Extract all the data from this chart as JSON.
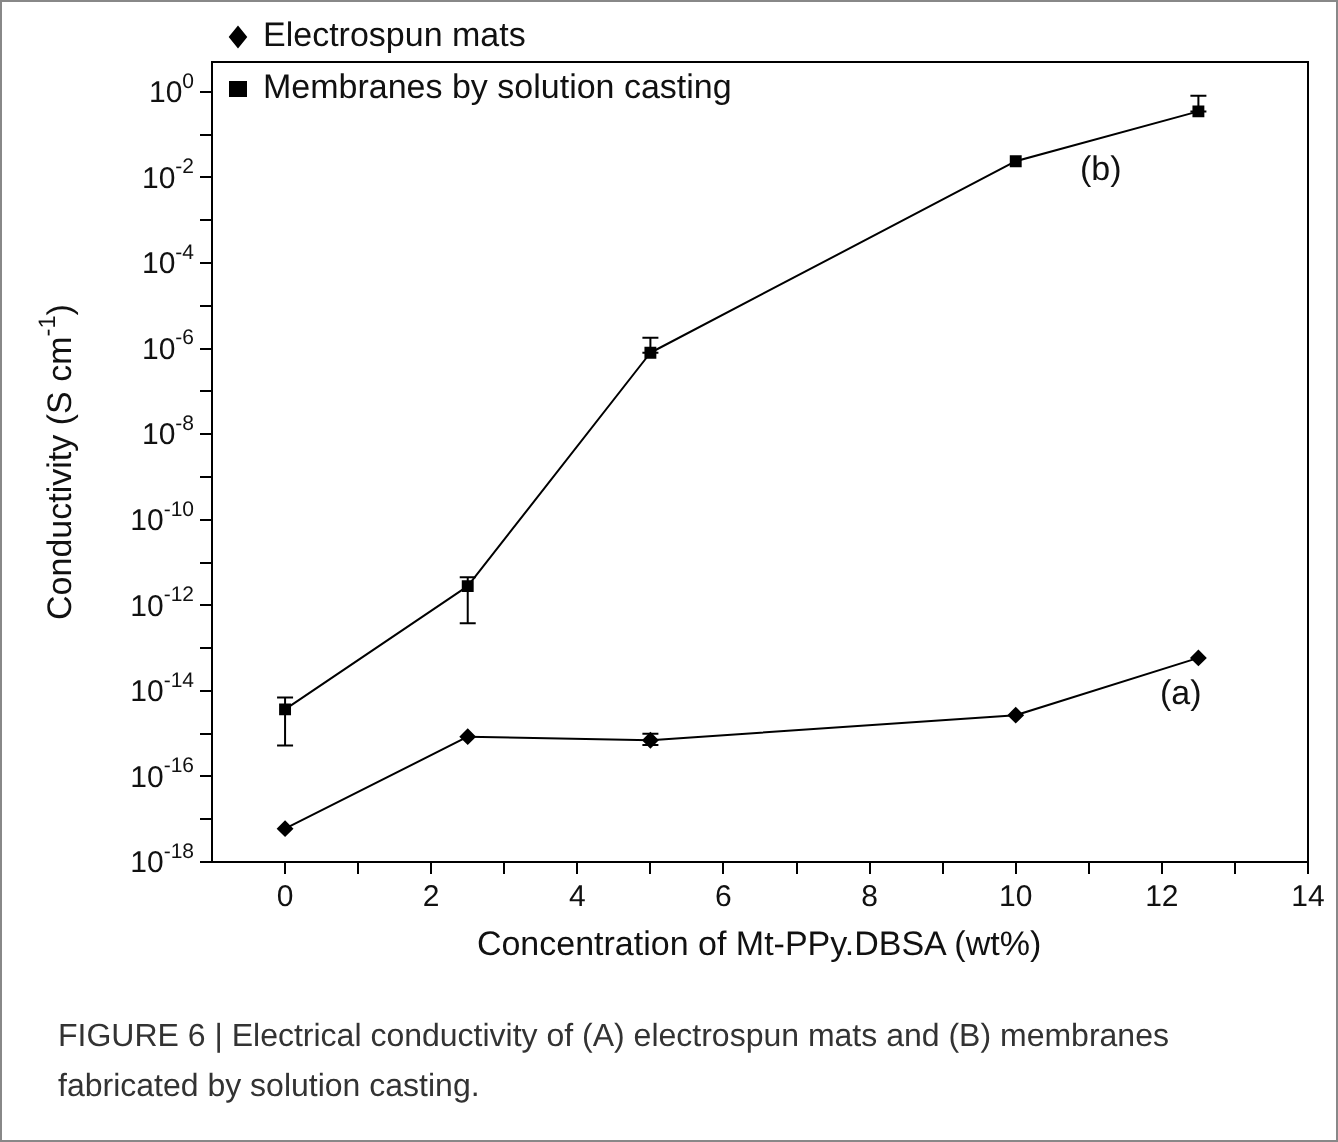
{
  "chart_data": {
    "type": "line",
    "xlabel": "Concentration of Mt-PPy.DBSA (wt%)",
    "ylabel": "Conductivity (S cm$^{-1}$)",
    "x": [
      0,
      2.5,
      5,
      10,
      12.5
    ],
    "series": [
      {
        "name": "Electrospun mats",
        "color": "#000000",
        "marker": "diamond",
        "values": [
          6e-18,
          8.5e-16,
          7e-16,
          2.7e-15,
          5.9e-14
        ],
        "errors": [
          null,
          null,
          [
            5.4e-16,
            1e-15
          ],
          null,
          null
        ]
      },
      {
        "name": "Membranes by solution casting",
        "color": "#000000",
        "marker": "square",
        "values": [
          3.7e-15,
          2.8e-12,
          8e-07,
          0.024,
          0.35
        ],
        "errors": [
          [
            5.3e-16,
            7e-15
          ],
          [
            3.8e-13,
            4.5e-12
          ],
          [
            8e-07,
            1.8e-06
          ],
          null,
          [
            0.35,
            0.81
          ]
        ]
      }
    ],
    "log": "y",
    "xlim": [
      -1,
      14
    ],
    "xticks": [
      0,
      {
        "value": 1,
        "label": null
      },
      2,
      {
        "value": 3,
        "label": null
      },
      4,
      {
        "value": 5,
        "label": null
      },
      6,
      {
        "value": 7,
        "label": null
      },
      8,
      {
        "value": 9,
        "label": null
      },
      10,
      {
        "value": 11,
        "label": null
      },
      12,
      {
        "value": 13,
        "label": null
      },
      14
    ],
    "ylim": [
      1e-18,
      5
    ],
    "yticks": [
      {
        "value": 1,
        "label": "10$^{0}$"
      },
      {
        "value": 0.1,
        "label": null
      },
      {
        "value": 0.01,
        "label": "10$^{-2}$"
      },
      {
        "value": 0.001,
        "label": null
      },
      {
        "value": 0.0001,
        "label": "10$^{-4}$"
      },
      {
        "value": 1e-05,
        "label": null
      },
      {
        "value": 1e-06,
        "label": "10$^{-6}$"
      },
      {
        "value": 1e-07,
        "label": null
      },
      {
        "value": 1e-08,
        "label": "10$^{-8}$"
      },
      {
        "value": 1e-09,
        "label": null
      },
      {
        "value": 1e-10,
        "label": "10$^{-10}$"
      },
      {
        "value": 1e-11,
        "label": null
      },
      {
        "value": 1e-12,
        "label": "10$^{-12}$"
      },
      {
        "value": 1e-13,
        "label": null
      },
      {
        "value": 1e-14,
        "label": "10$^{-14}$"
      },
      {
        "value": 1e-15,
        "label": null
      },
      {
        "value": 1e-16,
        "label": "10$^{-16}$"
      },
      {
        "value": 1e-17,
        "label": null
      },
      {
        "value": 1e-18,
        "label": "10$^{-18}$"
      }
    ],
    "grid": false,
    "legend": "top left",
    "annotations": [
      "(b)",
      "(a)",
      "FIGURE 6 | Electrical conductivity of (A) electrospun mats and (B) membranes fabricated by solution casting."
    ]
  }
}
